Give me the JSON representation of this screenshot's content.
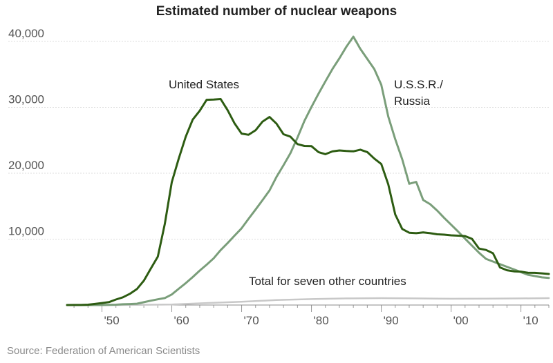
{
  "chart_data": {
    "type": "line",
    "title": "Estimated number of nuclear weapons",
    "source": "Source: Federation of American Scientists",
    "xlim": [
      1945,
      2014
    ],
    "ylim": [
      0,
      40000
    ],
    "grid": true,
    "y_ticks": [
      10000,
      20000,
      30000,
      40000
    ],
    "y_tick_labels": [
      "10,000",
      "20,000",
      "30,000",
      "40,000"
    ],
    "x_ticks": [
      1950,
      1960,
      1970,
      1980,
      1990,
      2000,
      2010
    ],
    "x_tick_labels": [
      "'50",
      "'60",
      "'70",
      "'80",
      "'90",
      "'00",
      "'10"
    ],
    "series": [
      {
        "name": "United States",
        "color": "#2d5c12",
        "label": "United States",
        "points": [
          [
            1945,
            2
          ],
          [
            1946,
            9
          ],
          [
            1947,
            13
          ],
          [
            1948,
            50
          ],
          [
            1949,
            170
          ],
          [
            1950,
            299
          ],
          [
            1951,
            438
          ],
          [
            1952,
            841
          ],
          [
            1953,
            1169
          ],
          [
            1954,
            1703
          ],
          [
            1955,
            2422
          ],
          [
            1956,
            3692
          ],
          [
            1957,
            5543
          ],
          [
            1958,
            7345
          ],
          [
            1959,
            12298
          ],
          [
            1960,
            18638
          ],
          [
            1961,
            22229
          ],
          [
            1962,
            25540
          ],
          [
            1963,
            28133
          ],
          [
            1964,
            29463
          ],
          [
            1965,
            31139
          ],
          [
            1966,
            31175
          ],
          [
            1967,
            31255
          ],
          [
            1968,
            29561
          ],
          [
            1969,
            27552
          ],
          [
            1970,
            26008
          ],
          [
            1971,
            25830
          ],
          [
            1972,
            26516
          ],
          [
            1973,
            27835
          ],
          [
            1974,
            28537
          ],
          [
            1975,
            27519
          ],
          [
            1976,
            25914
          ],
          [
            1977,
            25542
          ],
          [
            1978,
            24418
          ],
          [
            1979,
            24138
          ],
          [
            1980,
            24104
          ],
          [
            1981,
            23208
          ],
          [
            1982,
            22886
          ],
          [
            1983,
            23305
          ],
          [
            1984,
            23459
          ],
          [
            1985,
            23368
          ],
          [
            1986,
            23317
          ],
          [
            1987,
            23575
          ],
          [
            1988,
            23205
          ],
          [
            1989,
            22217
          ],
          [
            1990,
            21392
          ],
          [
            1991,
            18306
          ],
          [
            1992,
            13731
          ],
          [
            1993,
            11536
          ],
          [
            1994,
            10979
          ],
          [
            1995,
            10904
          ],
          [
            1996,
            11011
          ],
          [
            1997,
            10903
          ],
          [
            1998,
            10732
          ],
          [
            1999,
            10685
          ],
          [
            2000,
            10577
          ],
          [
            2001,
            10526
          ],
          [
            2002,
            10457
          ],
          [
            2003,
            10027
          ],
          [
            2004,
            8570
          ],
          [
            2005,
            8360
          ],
          [
            2006,
            7853
          ],
          [
            2007,
            5709
          ],
          [
            2008,
            5273
          ],
          [
            2009,
            5113
          ],
          [
            2010,
            5066
          ],
          [
            2011,
            4897
          ],
          [
            2012,
            4881
          ],
          [
            2013,
            4804
          ],
          [
            2014,
            4717
          ]
        ]
      },
      {
        "name": "U.S.S.R./ Russia",
        "color": "#7a9e7a",
        "label_lines": [
          "U.S.S.R./",
          "Russia"
        ],
        "points": [
          [
            1945,
            0
          ],
          [
            1949,
            1
          ],
          [
            1950,
            5
          ],
          [
            1951,
            25
          ],
          [
            1952,
            50
          ],
          [
            1953,
            120
          ],
          [
            1954,
            150
          ],
          [
            1955,
            200
          ],
          [
            1956,
            426
          ],
          [
            1957,
            660
          ],
          [
            1958,
            869
          ],
          [
            1959,
            1060
          ],
          [
            1960,
            1605
          ],
          [
            1961,
            2471
          ],
          [
            1962,
            3322
          ],
          [
            1963,
            4238
          ],
          [
            1964,
            5221
          ],
          [
            1965,
            6129
          ],
          [
            1966,
            7089
          ],
          [
            1967,
            8339
          ],
          [
            1968,
            9399
          ],
          [
            1969,
            10538
          ],
          [
            1970,
            11643
          ],
          [
            1971,
            13092
          ],
          [
            1972,
            14478
          ],
          [
            1973,
            15915
          ],
          [
            1974,
            17385
          ],
          [
            1975,
            19443
          ],
          [
            1976,
            21205
          ],
          [
            1977,
            23044
          ],
          [
            1978,
            25393
          ],
          [
            1979,
            27935
          ],
          [
            1980,
            30062
          ],
          [
            1981,
            32049
          ],
          [
            1982,
            33952
          ],
          [
            1983,
            35804
          ],
          [
            1984,
            37431
          ],
          [
            1985,
            39197
          ],
          [
            1986,
            40723
          ],
          [
            1987,
            38859
          ],
          [
            1988,
            37333
          ],
          [
            1989,
            35805
          ],
          [
            1990,
            33417
          ],
          [
            1991,
            28595
          ],
          [
            1992,
            25155
          ],
          [
            1993,
            22101
          ],
          [
            1994,
            18399
          ],
          [
            1995,
            18679
          ],
          [
            1996,
            15942
          ],
          [
            1997,
            15303
          ],
          [
            1998,
            14337
          ],
          [
            1999,
            13227
          ],
          [
            2000,
            12186
          ],
          [
            2001,
            11149
          ],
          [
            2002,
            10060
          ],
          [
            2003,
            8997
          ],
          [
            2004,
            7939
          ],
          [
            2005,
            7000
          ],
          [
            2006,
            6600
          ],
          [
            2007,
            6200
          ],
          [
            2008,
            5800
          ],
          [
            2009,
            5400
          ],
          [
            2010,
            5000
          ],
          [
            2011,
            4600
          ],
          [
            2012,
            4400
          ],
          [
            2013,
            4200
          ],
          [
            2014,
            4100
          ]
        ]
      },
      {
        "name": "Total for seven other countries",
        "color": "#c8c8c8",
        "label": "Total for seven other countries",
        "points": [
          [
            1945,
            0
          ],
          [
            1952,
            1
          ],
          [
            1955,
            20
          ],
          [
            1960,
            80
          ],
          [
            1965,
            300
          ],
          [
            1970,
            500
          ],
          [
            1975,
            750
          ],
          [
            1980,
            900
          ],
          [
            1985,
            1000
          ],
          [
            1990,
            1050
          ],
          [
            1995,
            1000
          ],
          [
            2000,
            950
          ],
          [
            2005,
            960
          ],
          [
            2010,
            1000
          ],
          [
            2014,
            1050
          ]
        ]
      }
    ]
  }
}
